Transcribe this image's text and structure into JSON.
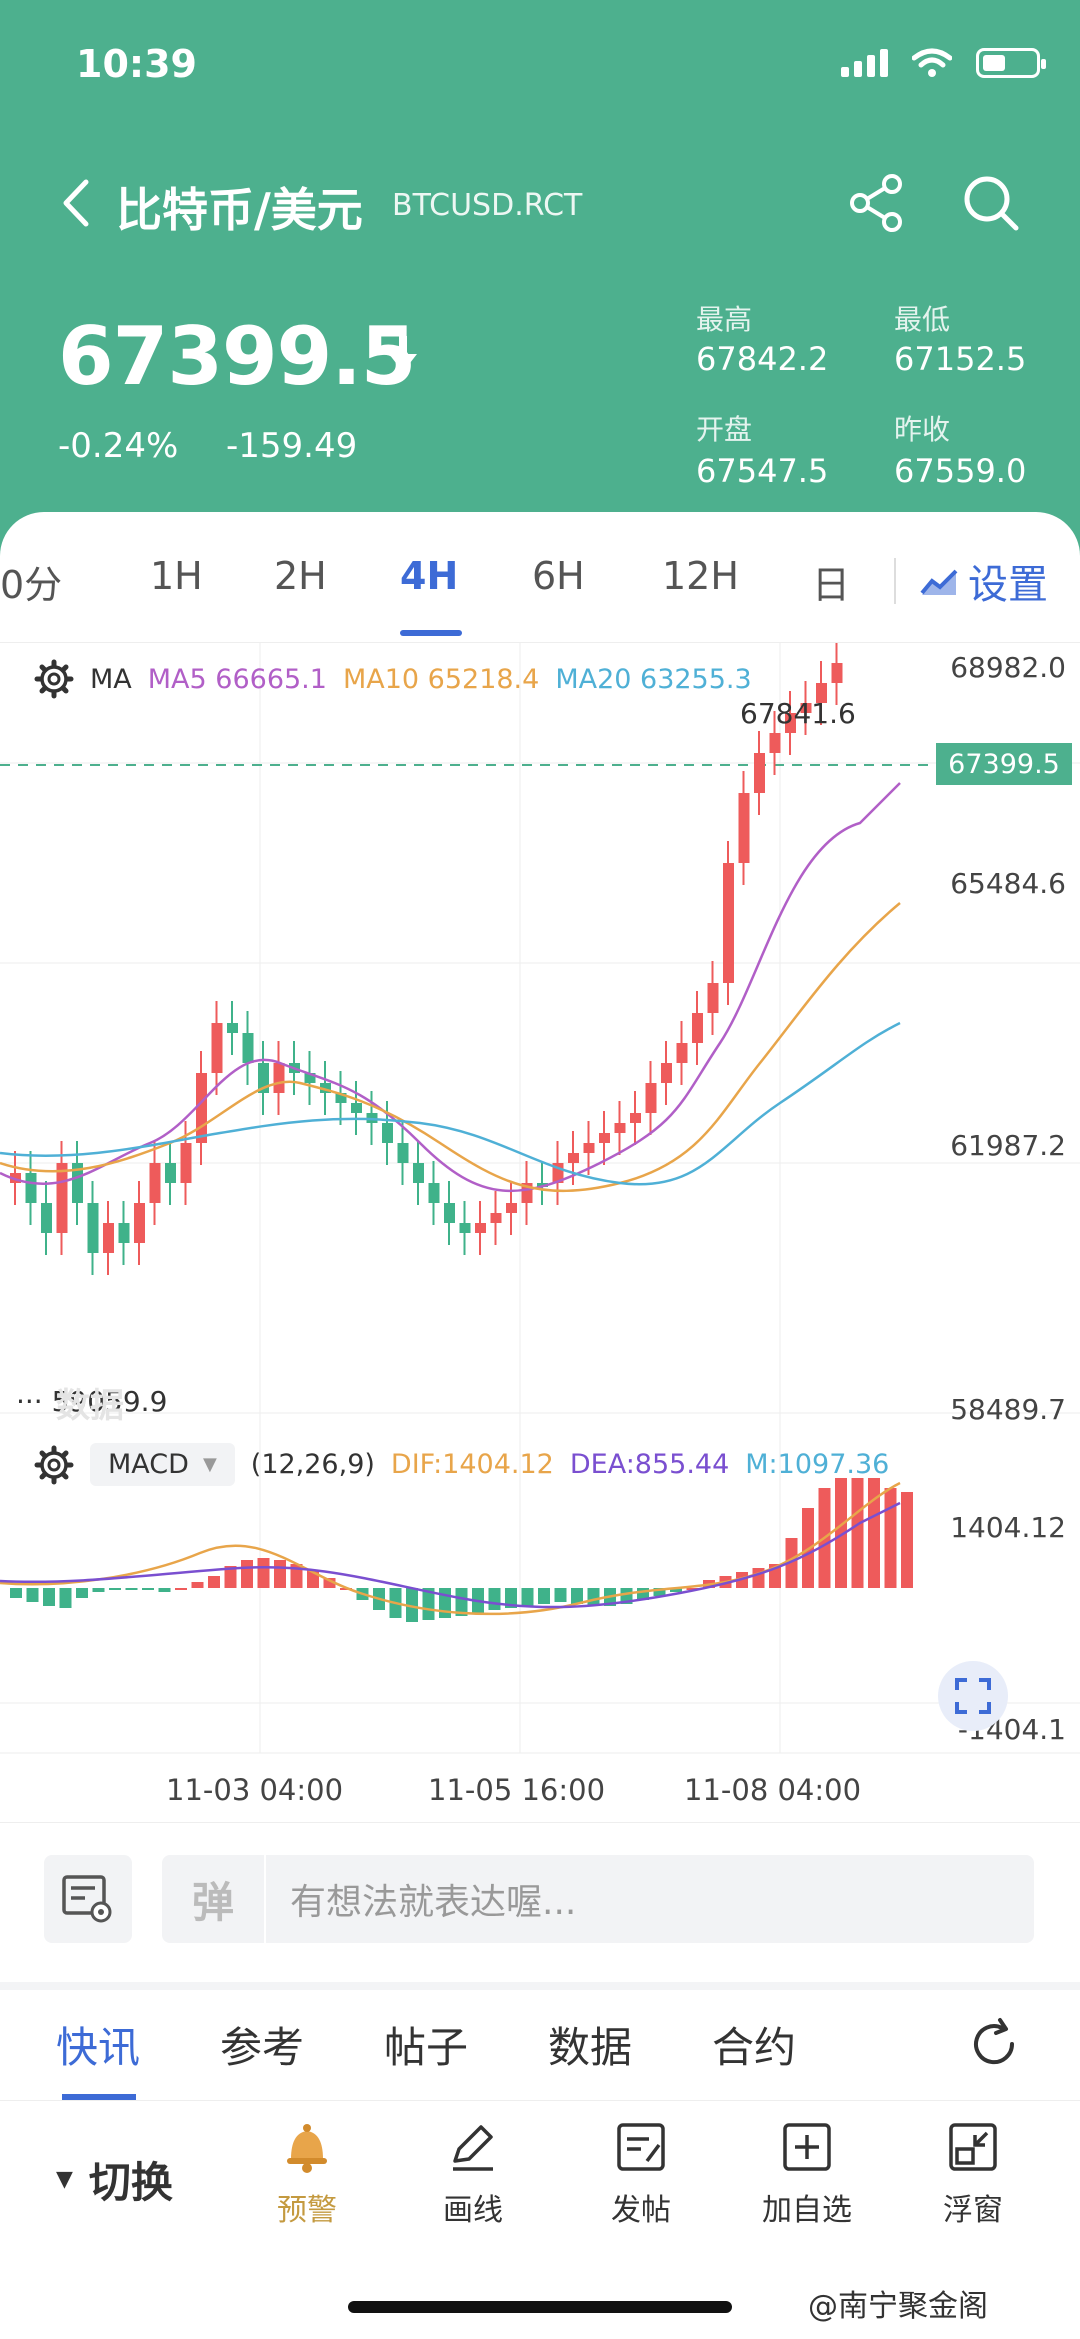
{
  "status_bar": {
    "time": "10:39"
  },
  "header": {
    "symbol_name": "比特币/美元",
    "symbol_code": "BTCUSD.RCT",
    "price": "67399.5",
    "change_pct": "-0.24%",
    "change_abs": "-159.49",
    "stats": [
      {
        "label": "最高",
        "value": "67842.2"
      },
      {
        "label": "最低",
        "value": "67152.5"
      },
      {
        "label": "开盘",
        "value": "67547.5"
      },
      {
        "label": "昨收",
        "value": "67559.0"
      }
    ]
  },
  "period_tabs": {
    "items": [
      "0分",
      "1H",
      "2H",
      "4H",
      "6H",
      "12H",
      "日"
    ],
    "active": "4H",
    "settings_label": "设置"
  },
  "chart": {
    "ma_label": "MA",
    "ma5": "MA5 66665.1",
    "ma10": "MA10 65218.4",
    "ma20": "MA20 63255.3",
    "price_axis": [
      "68982.0",
      "65484.6",
      "61987.2",
      "58489.7"
    ],
    "current_price_tag": "67399.5",
    "high_label": "67841.6",
    "low_label": "59059.9",
    "watermark": "数据",
    "macd_label": "MACD",
    "macd_params": "(12,26,9)",
    "dif": "DIF:1404.12",
    "dea": "DEA:855.44",
    "m": "M:1097.36",
    "macd_axis": [
      "1404.12",
      "-1404.1"
    ],
    "dates": [
      "11-03 04:00",
      "11-05 16:00",
      "11-08 04:00"
    ],
    "colors": {
      "up": "#ee5b5b",
      "down": "#3fb28a",
      "ma5": "#b15fc7",
      "ma10": "#e8a54a",
      "ma20": "#4fb0d6",
      "dif": "#e8a54a",
      "dea": "#7a4fd0"
    }
  },
  "comment": {
    "placeholder": "有想法就表达喔..."
  },
  "news_tabs": {
    "items": [
      "快讯",
      "参考",
      "帖子",
      "数据",
      "合约"
    ],
    "active": "快讯"
  },
  "toolbar": {
    "switch_label": "切换",
    "items": [
      {
        "label": "预警",
        "icon": "bell-icon"
      },
      {
        "label": "画线",
        "icon": "pen-icon"
      },
      {
        "label": "发帖",
        "icon": "post-icon"
      },
      {
        "label": "加自选",
        "icon": "add-icon"
      },
      {
        "label": "浮窗",
        "icon": "float-window-icon"
      }
    ]
  },
  "brand": "南宁聚金阁"
}
